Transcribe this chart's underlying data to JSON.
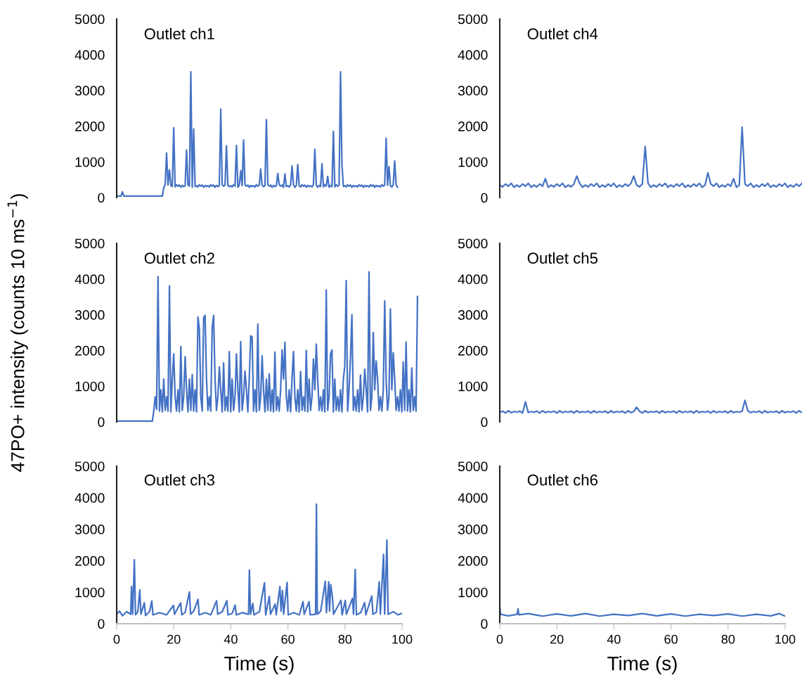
{
  "chart_data": [
    {
      "type": "line",
      "title": "Outlet ch1",
      "ylim": [
        0,
        5000
      ],
      "yticks": [
        0,
        1000,
        2000,
        3000,
        4000,
        5000
      ],
      "tick_labels": "y",
      "categories": [
        null,
        null,
        null,
        null,
        null,
        null,
        null,
        null,
        null,
        null,
        null,
        null,
        null,
        null,
        null,
        null,
        null,
        null,
        null,
        null,
        null,
        null,
        null,
        null,
        null,
        null,
        null,
        null,
        null,
        null,
        null,
        null,
        null,
        null,
        null,
        null,
        null,
        null,
        null,
        null,
        null,
        null,
        null,
        null,
        null,
        null,
        null,
        null,
        null,
        null,
        null,
        null,
        null,
        null,
        null,
        null,
        null,
        null,
        null,
        null,
        null,
        null,
        null,
        null,
        null,
        null,
        null,
        null,
        null,
        null,
        null,
        null,
        null,
        null,
        null,
        null,
        null,
        null,
        null,
        null,
        null,
        null,
        null,
        null,
        null,
        null,
        null,
        null,
        null,
        null,
        null,
        null,
        null,
        null,
        null,
        null,
        null,
        null,
        null,
        null,
        null,
        null,
        null,
        null,
        null,
        null,
        null,
        null,
        null,
        null,
        null,
        null,
        null,
        null,
        null,
        null,
        null,
        null,
        null,
        null,
        null,
        null,
        null,
        null,
        null,
        null,
        null,
        null,
        null,
        null,
        null,
        null,
        null,
        null,
        null,
        null,
        null,
        null,
        null,
        null,
        null,
        null,
        null,
        null,
        null,
        null,
        null,
        null,
        null,
        null,
        null,
        null,
        null,
        null,
        null,
        null,
        null,
        null,
        null,
        null,
        null,
        null,
        null,
        null,
        null,
        null,
        null,
        null,
        null,
        null,
        null,
        null,
        null,
        null,
        null,
        null,
        null,
        null,
        null,
        null,
        null,
        null,
        null,
        null,
        null,
        null,
        null,
        null,
        null,
        null,
        null,
        null,
        null,
        null,
        null,
        null,
        null,
        null,
        null,
        null,
        null,
        null,
        null,
        null,
        null,
        null,
        null,
        null,
        null,
        null,
        null,
        null,
        null
      ],
      "series": [
        {
          "color": "#4472c4",
          "values": [
            40,
            40,
            40,
            40,
            160,
            40,
            40,
            40,
            40,
            40,
            40,
            40,
            40,
            40,
            40,
            40,
            40,
            40,
            40,
            40,
            40,
            40,
            40,
            40,
            40,
            40,
            40,
            40,
            40,
            40,
            40,
            40,
            40,
            280,
            360,
            1250,
            350,
            775,
            340,
            310,
            1955,
            300,
            360,
            320,
            350,
            290,
            340,
            310,
            330,
            1330,
            360,
            320,
            3520,
            290,
            1920,
            310,
            330,
            300,
            360,
            320,
            350,
            290,
            340,
            310,
            330,
            300,
            360,
            320,
            350,
            290,
            340,
            310,
            330,
            2480,
            360,
            320,
            350,
            1450,
            340,
            310,
            330,
            300,
            360,
            320,
            1460,
            290,
            340,
            755,
            330,
            1610,
            360,
            320,
            350,
            290,
            340,
            310,
            330,
            300,
            360,
            320,
            350,
            800,
            340,
            310,
            330,
            2185,
            360,
            320,
            350,
            290,
            340,
            310,
            330,
            675,
            360,
            320,
            350,
            290,
            660,
            310,
            330,
            300,
            360,
            885,
            350,
            290,
            340,
            925,
            330,
            300,
            360,
            320,
            350,
            290,
            340,
            310,
            330,
            300,
            360,
            1350,
            350,
            290,
            340,
            310,
            950,
            300,
            360,
            320,
            595,
            290,
            340,
            310,
            1855,
            300,
            360,
            320,
            350,
            3520,
            940,
            310,
            330,
            300,
            360,
            320,
            350,
            290,
            340,
            310,
            330,
            300,
            360,
            320,
            350,
            290,
            340,
            310,
            330,
            300,
            360,
            320,
            350,
            290,
            340,
            310,
            330,
            300,
            360,
            320,
            350,
            1660,
            340,
            870,
            330,
            300,
            360,
            1025,
            350,
            290,
            null,
            null,
            null,
            null,
            null,
            null,
            null,
            null,
            null,
            null,
            null,
            null,
            null,
            null,
            null
          ]
        }
      ]
    },
    {
      "type": "line",
      "title": "Outlet ch4",
      "ylim": [
        0,
        5000
      ],
      "yticks": [
        0,
        1000,
        2000,
        3000,
        4000,
        5000
      ],
      "tick_labels": "y",
      "categories": [
        null,
        null,
        null,
        null,
        null,
        null,
        null,
        null,
        null,
        null,
        null,
        null,
        null,
        null,
        null,
        null,
        null,
        null,
        null,
        null,
        null,
        null,
        null,
        null,
        null,
        null,
        null,
        null,
        null,
        null,
        null,
        null,
        null,
        null,
        null,
        null,
        null,
        null,
        null,
        null,
        null,
        null,
        null,
        null,
        null,
        null,
        null,
        null,
        null,
        null,
        null,
        null,
        null,
        null,
        null,
        null,
        null,
        null,
        null,
        null,
        null,
        null,
        null,
        null,
        null,
        null,
        null,
        null,
        null,
        null,
        null,
        null,
        null,
        null,
        null,
        null,
        null,
        null,
        null,
        null,
        null,
        null,
        null,
        null,
        null,
        null,
        null,
        null,
        null,
        null,
        null,
        null,
        null,
        null,
        null,
        null,
        null,
        null,
        null,
        null,
        null,
        null,
        null,
        null,
        null,
        null,
        null
      ],
      "series": [
        {
          "color": "#4472c4",
          "values": [
            350,
            300,
            380,
            320,
            400,
            290,
            350,
            300,
            380,
            320,
            400,
            290,
            350,
            300,
            380,
            320,
            530,
            290,
            350,
            300,
            380,
            320,
            400,
            290,
            350,
            300,
            380,
            600,
            400,
            290,
            350,
            300,
            380,
            320,
            400,
            290,
            350,
            300,
            380,
            320,
            400,
            290,
            350,
            300,
            380,
            320,
            400,
            600,
            350,
            300,
            380,
            1430,
            400,
            290,
            350,
            300,
            380,
            320,
            400,
            290,
            350,
            300,
            380,
            320,
            400,
            290,
            350,
            300,
            380,
            320,
            400,
            290,
            350,
            695,
            380,
            320,
            400,
            290,
            350,
            300,
            380,
            320,
            530,
            290,
            350,
            1970,
            380,
            320,
            400,
            290,
            350,
            300,
            380,
            320,
            400,
            290,
            350,
            300,
            380,
            320,
            400,
            290,
            350,
            300,
            380,
            320,
            400
          ]
        }
      ]
    },
    {
      "type": "line",
      "title": "Outlet ch2",
      "ylabel": "47PO+ intensity (counts 10 ms$^{−1}$)",
      "ylim": [
        0,
        5000
      ],
      "yticks": [
        0,
        1000,
        2000,
        3000,
        4000,
        5000
      ],
      "tick_labels": "y",
      "categories": [
        null,
        null,
        null,
        null,
        null,
        null,
        null,
        null,
        null,
        null,
        null,
        null,
        null,
        null,
        null,
        null,
        null,
        null,
        null,
        null,
        null,
        null,
        null,
        null,
        null,
        null,
        null,
        null,
        null,
        null,
        null,
        null,
        null,
        null,
        null,
        null,
        null,
        null,
        null,
        null,
        null,
        null,
        null,
        null,
        null,
        null,
        null,
        null,
        null,
        null,
        null,
        null,
        null,
        null,
        null,
        null,
        null,
        null,
        null,
        null,
        null,
        null,
        null,
        null,
        null,
        null,
        null,
        null,
        null,
        null,
        null,
        null,
        null,
        null,
        null,
        null,
        null,
        null,
        null,
        null,
        null,
        null,
        null,
        null,
        null,
        null,
        null,
        null,
        null,
        null,
        null,
        null,
        null,
        null,
        null,
        null,
        null,
        null,
        null,
        null,
        null,
        null,
        null,
        null,
        null,
        null,
        null,
        null,
        null,
        null,
        null,
        null,
        null,
        null,
        null,
        null,
        null,
        null,
        null,
        null,
        null,
        null,
        null,
        null,
        null,
        null,
        null,
        null,
        null,
        null,
        null,
        null,
        null,
        null,
        null,
        null,
        null,
        null,
        null,
        null,
        null,
        null,
        null,
        null,
        null,
        null,
        null,
        null,
        null,
        null,
        null,
        null,
        null,
        null,
        null,
        null,
        null,
        null,
        null,
        null,
        null,
        null,
        null,
        null,
        null,
        null,
        null,
        null,
        null,
        null,
        null,
        null,
        null,
        null,
        null,
        null,
        null,
        null,
        null,
        null,
        null,
        null,
        null,
        null,
        null,
        null,
        null,
        null,
        null,
        null,
        null,
        null,
        null,
        null,
        null,
        null,
        null,
        null,
        null,
        null,
        null,
        null,
        null,
        null,
        null,
        null,
        null,
        null,
        null,
        null,
        null,
        null,
        null
      ],
      "series": [
        {
          "color": "#4472c4",
          "values": [
            20,
            20,
            20,
            20,
            20,
            20,
            20,
            20,
            20,
            20,
            20,
            20,
            20,
            20,
            20,
            20,
            20,
            20,
            20,
            20,
            20,
            20,
            20,
            20,
            20,
            20,
            300,
            700,
            350,
            4070,
            300,
            900,
            280,
            1200,
            320,
            700,
            300,
            3805,
            280,
            1200,
            1900,
            700,
            300,
            900,
            280,
            2110,
            320,
            700,
            1825,
            900,
            280,
            1200,
            320,
            1325,
            300,
            900,
            280,
            2935,
            2610,
            700,
            300,
            2920,
            2985,
            1200,
            320,
            700,
            300,
            2655,
            2985,
            1200,
            320,
            700,
            1540,
            900,
            280,
            1650,
            320,
            700,
            300,
            1970,
            280,
            1200,
            320,
            700,
            1900,
            900,
            280,
            2245,
            320,
            700,
            1425,
            900,
            280,
            1200,
            2410,
            2380,
            300,
            900,
            280,
            2740,
            320,
            700,
            1850,
            900,
            280,
            1200,
            320,
            1345,
            300,
            900,
            280,
            1955,
            320,
            700,
            300,
            900,
            2015,
            1200,
            2230,
            700,
            300,
            900,
            280,
            1200,
            1970,
            700,
            300,
            900,
            280,
            1410,
            320,
            700,
            300,
            2000,
            280,
            1200,
            320,
            700,
            1760,
            900,
            2180,
            1200,
            320,
            700,
            300,
            900,
            280,
            3695,
            320,
            700,
            1900,
            2015,
            280,
            1200,
            320,
            700,
            300,
            900,
            280,
            1200,
            1560,
            3955,
            300,
            900,
            1805,
            3000,
            320,
            700,
            300,
            900,
            280,
            1310,
            320,
            700,
            1475,
            900,
            280,
            4200,
            320,
            700,
            2505,
            900,
            1705,
            1200,
            320,
            700,
            300,
            900,
            3390,
            1200,
            320,
            700,
            3160,
            900,
            1935,
            1200,
            320,
            700,
            300,
            900,
            280,
            1675,
            320,
            2230,
            300,
            900,
            280,
            1510,
            320,
            700,
            300,
            3510,
            null
          ]
        }
      ]
    },
    {
      "type": "line",
      "title": "Outlet ch5",
      "ylim": [
        0,
        5000
      ],
      "yticks": [
        0,
        1000,
        2000,
        3000,
        4000,
        5000
      ],
      "tick_labels": "y",
      "categories": [
        null,
        null,
        null,
        null,
        null,
        null,
        null,
        null,
        null,
        null,
        null,
        null,
        null,
        null,
        null,
        null,
        null,
        null,
        null,
        null,
        null,
        null,
        null,
        null,
        null,
        null,
        null,
        null,
        null,
        null,
        null,
        null,
        null,
        null,
        null,
        null,
        null,
        null,
        null,
        null,
        null,
        null,
        null,
        null,
        null,
        null,
        null,
        null,
        null,
        null,
        null,
        null,
        null,
        null,
        null,
        null,
        null,
        null,
        null,
        null,
        null,
        null,
        null,
        null,
        null,
        null,
        null,
        null,
        null,
        null,
        null,
        null,
        null,
        null,
        null,
        null,
        null,
        null,
        null,
        null,
        null,
        null,
        null,
        null,
        null,
        null,
        null,
        null,
        null,
        null,
        null,
        null,
        null,
        null,
        null,
        null,
        null,
        null,
        null,
        null,
        null,
        null,
        null,
        null,
        null,
        null,
        null
      ],
      "series": [
        {
          "color": "#4472c4",
          "values": [
            270,
            300,
            250,
            310,
            260,
            290,
            270,
            300,
            250,
            560,
            260,
            290,
            270,
            300,
            250,
            310,
            260,
            290,
            270,
            300,
            250,
            310,
            260,
            290,
            270,
            300,
            250,
            310,
            260,
            290,
            270,
            300,
            250,
            310,
            260,
            290,
            270,
            300,
            250,
            310,
            260,
            290,
            270,
            300,
            250,
            310,
            260,
            290,
            410,
            300,
            250,
            310,
            260,
            290,
            270,
            300,
            250,
            310,
            260,
            290,
            270,
            300,
            250,
            310,
            260,
            290,
            270,
            300,
            250,
            310,
            260,
            290,
            270,
            300,
            250,
            310,
            260,
            290,
            270,
            300,
            250,
            310,
            260,
            290,
            270,
            300,
            605,
            310,
            260,
            290,
            270,
            300,
            250,
            310,
            260,
            290,
            270,
            300,
            250,
            310,
            260,
            290,
            270,
            300,
            250,
            310,
            260
          ]
        }
      ]
    },
    {
      "type": "line",
      "title": "Outlet ch3",
      "xlabel": "Time (s)",
      "xlim": [
        0,
        100
      ],
      "xticks": [
        0,
        20,
        40,
        60,
        80,
        100
      ],
      "ylim": [
        0,
        5000
      ],
      "yticks": [
        0,
        1000,
        2000,
        3000,
        4000,
        5000
      ],
      "x": [
        0,
        1,
        2,
        3.5,
        4.9,
        5.2,
        5.6,
        6.2,
        6.6,
        7.4,
        8.1,
        8.5,
        9.7,
        10.1,
        11.5,
        12.3,
        12.7,
        15,
        17.5,
        19.9,
        20.3,
        22.4,
        22.8,
        24,
        25.5,
        25.9,
        27,
        28.5,
        28.9,
        31,
        33,
        35.0,
        35.4,
        37,
        38.6,
        39,
        40.5,
        41.5,
        41.9,
        44,
        46.2,
        46.5,
        46.9,
        47.7,
        48.1,
        50,
        51.8,
        52.2,
        53.5,
        53.9,
        55.5,
        55.9,
        57.2,
        57.6,
        58.1,
        58.5,
        59.7,
        60.1,
        62,
        64,
        65.3,
        65.7,
        67.4,
        67.8,
        69.7,
        70.0,
        70.3,
        71.5,
        73.1,
        73.5,
        74.3,
        74.6,
        75.0,
        75.6,
        76.0,
        78.6,
        79,
        80.1,
        80.5,
        82.6,
        83.0,
        83.6,
        84,
        85.5,
        86.9,
        87.3,
        89.4,
        89.8,
        91,
        92.0,
        92.4,
        93.5,
        93.9,
        94.7,
        95.1,
        97,
        98.5,
        100
      ],
      "series": [
        {
          "color": "#4472c4",
          "values": [
            300,
            400,
            250,
            380,
            300,
            1180,
            300,
            2030,
            280,
            380,
            1070,
            300,
            660,
            260,
            380,
            720,
            280,
            350,
            280,
            580,
            300,
            660,
            280,
            360,
            1010,
            300,
            400,
            770,
            280,
            350,
            280,
            730,
            300,
            380,
            730,
            280,
            330,
            590,
            280,
            350,
            300,
            1700,
            300,
            640,
            280,
            380,
            1300,
            280,
            870,
            300,
            620,
            280,
            1180,
            400,
            1050,
            300,
            1310,
            280,
            350,
            280,
            700,
            300,
            700,
            280,
            300,
            3800,
            300,
            400,
            1350,
            350,
            1330,
            400,
            1240,
            850,
            300,
            740,
            280,
            740,
            300,
            800,
            300,
            1720,
            280,
            350,
            670,
            280,
            880,
            300,
            360,
            1330,
            300,
            2200,
            300,
            2660,
            300,
            380,
            280,
            330
          ]
        }
      ]
    },
    {
      "type": "line",
      "title": "Outlet ch6",
      "xlabel": "Time (s)",
      "xlim": [
        0,
        100
      ],
      "xticks": [
        0,
        20,
        40,
        60,
        80,
        100
      ],
      "ylim": [
        0,
        5000
      ],
      "yticks": [
        0,
        1000,
        2000,
        3000,
        4000,
        5000
      ],
      "x": [
        0,
        0.3,
        3,
        6.1,
        6.4,
        6.7,
        10,
        15,
        20,
        25,
        30,
        35,
        40,
        45,
        50,
        55,
        60,
        65,
        70,
        75,
        80,
        85,
        90,
        95,
        98,
        100
      ],
      "series": [
        {
          "color": "#4472c4",
          "values": [
            530,
            300,
            250,
            300,
            470,
            280,
            320,
            240,
            310,
            250,
            320,
            240,
            300,
            260,
            320,
            250,
            310,
            240,
            300,
            260,
            310,
            240,
            300,
            250,
            320,
            240
          ]
        }
      ]
    }
  ]
}
